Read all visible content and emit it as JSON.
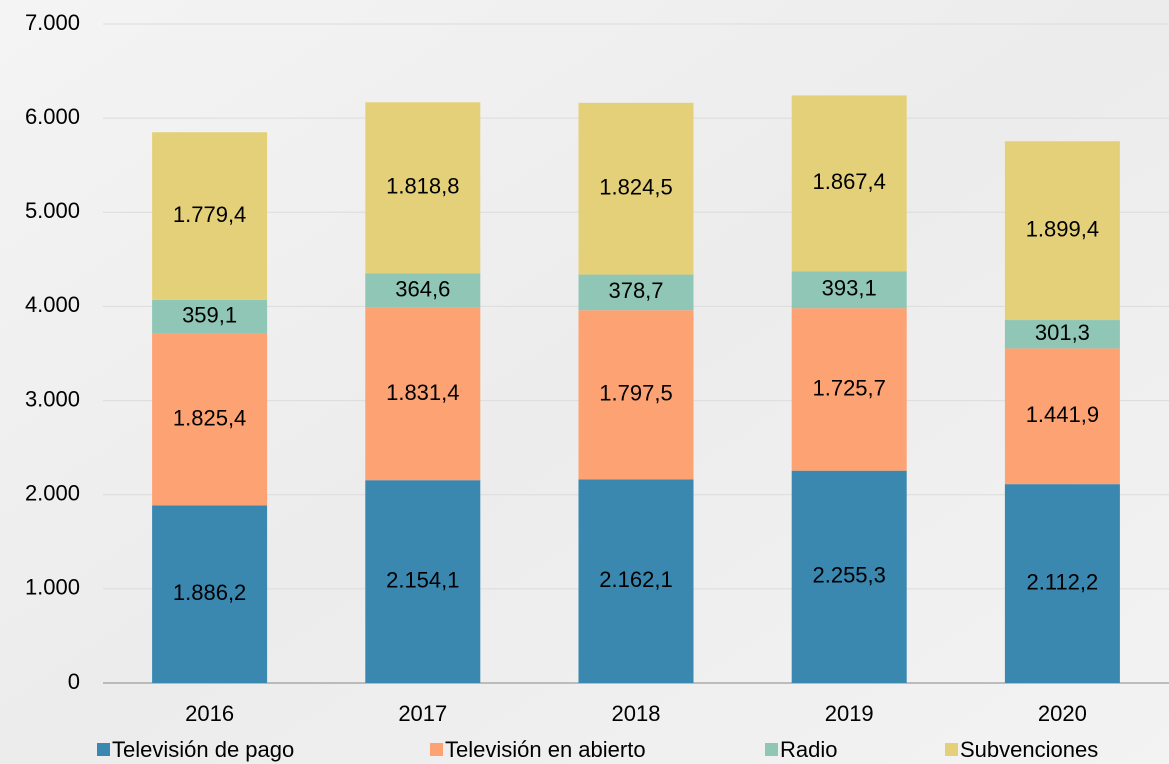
{
  "chart_data": {
    "type": "stacked_bar",
    "categories": [
      "2016",
      "2017",
      "2018",
      "2019",
      "2020"
    ],
    "series": [
      {
        "name": "Televisión de pago",
        "color": "#3a87b0",
        "values": [
          1886.2,
          2154.1,
          2162.1,
          2255.3,
          2112.2
        ],
        "value_labels": [
          "1.886,2",
          "2.154,1",
          "2.162,1",
          "2.255,3",
          "2.112,2"
        ]
      },
      {
        "name": "Televisión en abierto",
        "color": "#fca273",
        "values": [
          1825.4,
          1831.4,
          1797.5,
          1725.7,
          1441.9
        ],
        "value_labels": [
          "1.825,4",
          "1.831,4",
          "1.797,5",
          "1.725,7",
          "1.441,9"
        ]
      },
      {
        "name": "Radio",
        "color": "#8fc6b5",
        "values": [
          359.1,
          364.6,
          378.7,
          393.1,
          301.3
        ],
        "value_labels": [
          "359,1",
          "364,6",
          "378,7",
          "393,1",
          "301,3"
        ]
      },
      {
        "name": "Subvenciones",
        "color": "#e5d07a",
        "values": [
          1779.4,
          1818.8,
          1824.5,
          1867.4,
          1899.4
        ],
        "value_labels": [
          "1.779,4",
          "1.818,8",
          "1.824,5",
          "1.867,4",
          "1.899,4"
        ]
      }
    ],
    "ylim": [
      0,
      7000
    ],
    "yticks": [
      0,
      {
        "value": 1000,
        "label": "1.000"
      },
      {
        "value": 2000,
        "label": "2.000"
      },
      {
        "value": 3000,
        "label": "3.000"
      },
      {
        "value": 4000,
        "label": "4.000"
      },
      {
        "value": 5000,
        "label": "5.000"
      },
      {
        "value": 6000,
        "label": "6.000"
      },
      {
        "value": 7000,
        "label": "7.000"
      }
    ],
    "grid": true,
    "legend": "bottom"
  }
}
